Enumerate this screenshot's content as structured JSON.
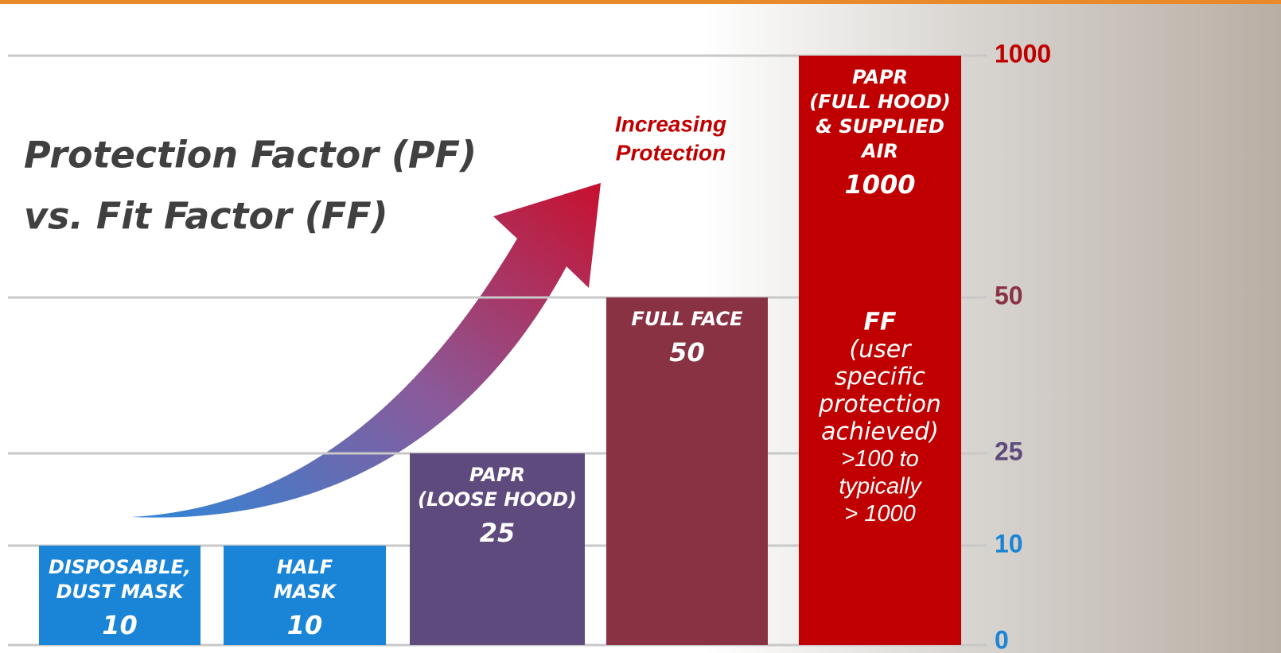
{
  "chart_data": {
    "type": "bar",
    "title": [
      "Protection Factor (PF)",
      "vs. Fit Factor (FF)"
    ],
    "annotation": [
      "Increasing",
      "Protection"
    ],
    "categories": [
      [
        "DISPOSABLE,",
        "DUST MASK"
      ],
      [
        "HALF",
        "MASK"
      ],
      [
        "PAPR",
        "(LOOSE HOOD)"
      ],
      [
        "FULL FACE"
      ],
      [
        "PAPR",
        "(FULL HOOD)",
        "& SUPPLIED",
        "AIR"
      ]
    ],
    "values": [
      10,
      10,
      25,
      50,
      1000
    ],
    "colors": [
      "#1a85d6",
      "#1a85d6",
      "#5e4a7c",
      "#893244",
      "#c00000"
    ],
    "note": [
      "FF",
      "(user",
      "specific",
      "protection",
      "achieved)",
      ">100 to",
      "typically",
      "> 1000"
    ],
    "ylim": [
      0,
      1000
    ],
    "yticks": [
      0,
      10,
      25,
      50,
      1000
    ],
    "ytick_colors": [
      "#1a85d6",
      "#1a85d6",
      "#5e4a7c",
      "#893244",
      "#c00000"
    ],
    "grid": true
  }
}
